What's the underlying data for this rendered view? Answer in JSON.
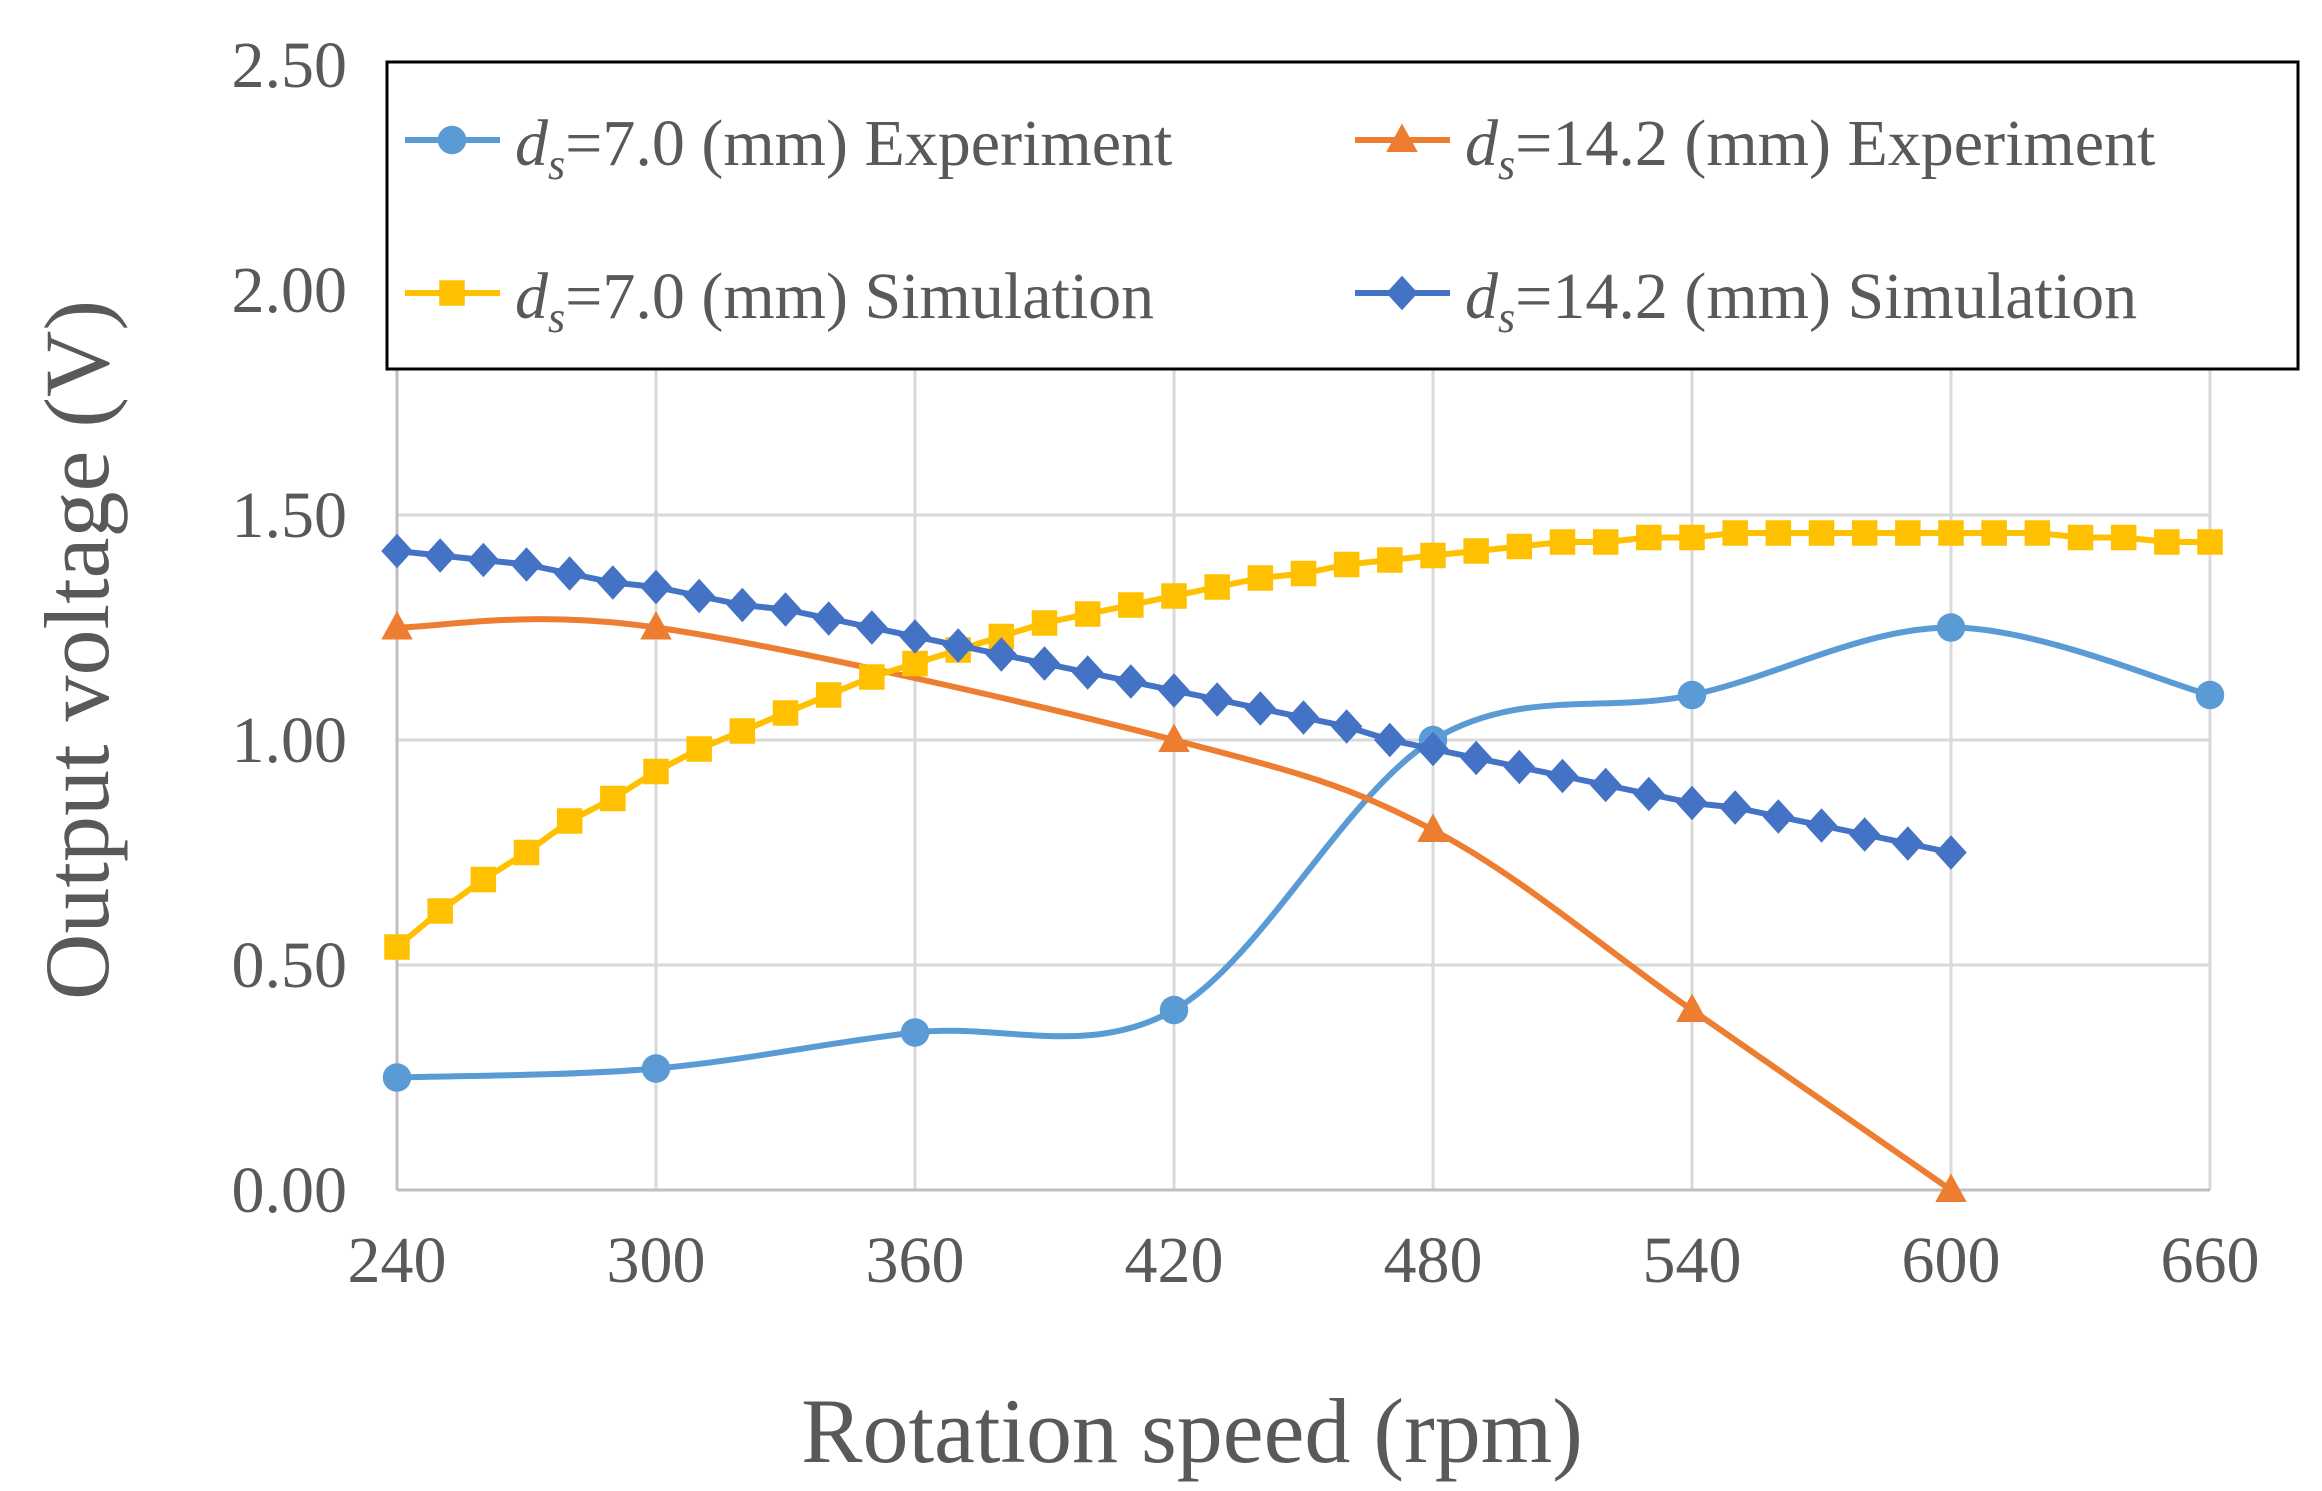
{
  "chart_data": {
    "type": "line",
    "xlabel": "Rotation speed (rpm)",
    "ylabel": "Output voltage (V)",
    "xlim": [
      240,
      660
    ],
    "ylim": [
      0,
      2.5
    ],
    "xticks": [
      "240",
      "300",
      "360",
      "420",
      "480",
      "540",
      "600",
      "660"
    ],
    "yticks": [
      "0.00",
      "0.50",
      "1.00",
      "1.50",
      "2.00",
      "2.50"
    ],
    "grid": true,
    "legend_position": "top",
    "legend_columns": 2,
    "series": [
      {
        "label_symbol": "d",
        "label_subscript": "s",
        "label_rest": "=7.0 (mm) Experiment",
        "color": "#5B9BD5",
        "marker": "circle",
        "smooth": true,
        "x": [
          240,
          300,
          360,
          420,
          480,
          540,
          600,
          660
        ],
        "y": [
          0.25,
          0.27,
          0.35,
          0.4,
          1.0,
          1.1,
          1.25,
          1.1
        ]
      },
      {
        "label_symbol": "d",
        "label_subscript": "s",
        "label_rest": "=14.2 (mm) Experiment",
        "color": "#ED7D31",
        "marker": "triangle",
        "smooth": true,
        "x": [
          240,
          300,
          420,
          480,
          540,
          600
        ],
        "y": [
          1.25,
          1.25,
          1.0,
          0.8,
          0.4,
          0.0
        ]
      },
      {
        "label_symbol": "d",
        "label_subscript": "s",
        "label_rest": "=7.0 (mm) Simulation",
        "color": "#FFC000",
        "marker": "square",
        "smooth": false,
        "x": [
          240,
          250,
          260,
          270,
          280,
          290,
          300,
          310,
          320,
          330,
          340,
          350,
          360,
          370,
          380,
          390,
          400,
          410,
          420,
          430,
          440,
          450,
          460,
          470,
          480,
          490,
          500,
          510,
          520,
          530,
          540,
          550,
          560,
          570,
          580,
          590,
          600,
          610,
          620,
          630,
          640,
          650,
          660
        ],
        "y": [
          0.54,
          0.62,
          0.69,
          0.75,
          0.82,
          0.87,
          0.93,
          0.98,
          1.02,
          1.06,
          1.1,
          1.14,
          1.17,
          1.2,
          1.23,
          1.26,
          1.28,
          1.3,
          1.32,
          1.34,
          1.36,
          1.37,
          1.39,
          1.4,
          1.41,
          1.42,
          1.43,
          1.44,
          1.44,
          1.45,
          1.45,
          1.46,
          1.46,
          1.46,
          1.46,
          1.46,
          1.46,
          1.46,
          1.46,
          1.45,
          1.45,
          1.44,
          1.44
        ]
      },
      {
        "label_symbol": "d",
        "label_subscript": "s",
        "label_rest": "=14.2 (mm) Simulation",
        "color": "#4472C4",
        "marker": "diamond",
        "smooth": false,
        "x": [
          240,
          250,
          260,
          270,
          280,
          290,
          300,
          310,
          320,
          330,
          340,
          350,
          360,
          370,
          380,
          390,
          400,
          410,
          420,
          430,
          440,
          450,
          460,
          470,
          480,
          490,
          500,
          510,
          520,
          530,
          540,
          550,
          560,
          570,
          580,
          590,
          600
        ],
        "y": [
          1.42,
          1.41,
          1.4,
          1.39,
          1.37,
          1.35,
          1.34,
          1.32,
          1.3,
          1.29,
          1.27,
          1.25,
          1.23,
          1.21,
          1.19,
          1.17,
          1.15,
          1.13,
          1.11,
          1.09,
          1.07,
          1.05,
          1.03,
          1.0,
          0.98,
          0.96,
          0.94,
          0.92,
          0.9,
          0.88,
          0.86,
          0.85,
          0.83,
          0.81,
          0.79,
          0.77,
          0.75
        ]
      }
    ]
  }
}
